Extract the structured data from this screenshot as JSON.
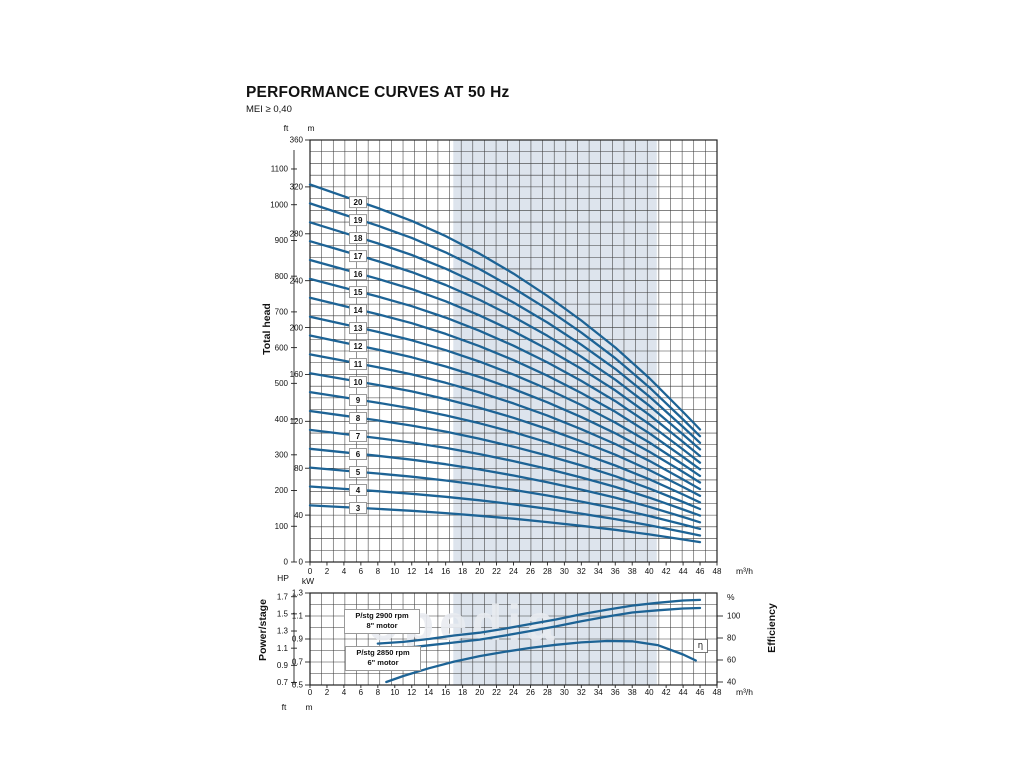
{
  "header": {
    "title": "PERFORMANCE CURVES AT 50 Hz",
    "mei": "MEI ≥ 0,40"
  },
  "watermark": "opedia",
  "colors": {
    "curve": "#1d6395",
    "band": "#dde4ed",
    "grid": "#3a3a3a",
    "text": "#111111",
    "box_border": "#8f8f8f",
    "watermark": "#e9ecf1"
  },
  "chart_data": [
    {
      "type": "line",
      "name": "total-head-curves",
      "title": "PERFORMANCE CURVES AT 50 Hz",
      "subtitle": "MEI ≥ 0,40",
      "ylabel": "Total head",
      "xlabel_unit": "m³/h",
      "axis_headers": {
        "ft": "ft",
        "m": "m"
      },
      "x_ticks": [
        0,
        2,
        4,
        6,
        8,
        10,
        12,
        14,
        16,
        18,
        20,
        22,
        24,
        26,
        28,
        30,
        32,
        34,
        36,
        38,
        40,
        42,
        44,
        46,
        48
      ],
      "ft_ticks": [
        1100,
        1000,
        900,
        800,
        700,
        600,
        500,
        400,
        300,
        200,
        100,
        0
      ],
      "m_ticks": [
        360,
        320,
        280,
        240,
        200,
        160,
        120,
        80,
        40,
        0
      ],
      "xlim": [
        0,
        48
      ],
      "ylim_m": [
        0,
        360
      ],
      "recommended_band_q": [
        16.9,
        40.9
      ],
      "stages": [
        3,
        4,
        5,
        6,
        7,
        8,
        9,
        10,
        11,
        12,
        13,
        14,
        15,
        16,
        17,
        18,
        19,
        20
      ],
      "per_stage_head": {
        "q": [
          0,
          4,
          8,
          12,
          16,
          20,
          24,
          28,
          32,
          36,
          40,
          44,
          46
        ],
        "h_m": [
          16.1,
          15.6,
          15.1,
          14.55,
          13.9,
          13.15,
          12.3,
          11.35,
          10.3,
          9.15,
          7.85,
          6.4,
          5.65
        ]
      },
      "curve_rule": "head curve for N stages = N × per-stage head"
    },
    {
      "type": "line",
      "name": "power-and-efficiency",
      "ylabel_left": "Power/stage",
      "ylabel_right": "Efficiency",
      "xlabel_unit": "m³/h",
      "axis_headers": {
        "hp": "HP",
        "kw": "kW",
        "pct": "%"
      },
      "footer_units": {
        "ft": "ft",
        "m": "m"
      },
      "x_ticks": [
        0,
        2,
        4,
        6,
        8,
        10,
        12,
        14,
        16,
        18,
        20,
        22,
        24,
        26,
        28,
        30,
        32,
        34,
        36,
        38,
        40,
        42,
        44,
        46,
        48
      ],
      "hp_ticks": [
        1.7,
        1.5,
        1.3,
        1.1,
        0.9,
        0.7
      ],
      "kw_ticks": [
        1.3,
        1.1,
        0.9,
        0.7,
        0.5
      ],
      "pct_ticks": [
        100,
        80,
        60,
        40
      ],
      "kw_lim": [
        0.5,
        1.3
      ],
      "pct_lim": [
        40,
        100
      ],
      "recommended_band_q": [
        16.9,
        40.9
      ],
      "series": [
        {
          "name": "P/stg 2900 rpm 8\" motor",
          "axis": "kw",
          "q": [
            8,
            11,
            14,
            17,
            20,
            23,
            26,
            29,
            32,
            35,
            38,
            41,
            44,
            46
          ],
          "kw": [
            0.86,
            0.875,
            0.9,
            0.93,
            0.955,
            0.99,
            1.03,
            1.07,
            1.115,
            1.155,
            1.19,
            1.215,
            1.235,
            1.24
          ]
        },
        {
          "name": "P/stg 2850 rpm 6\" motor",
          "axis": "kw",
          "q": [
            8,
            11,
            14,
            17,
            20,
            23,
            26,
            29,
            32,
            35,
            38,
            41,
            44,
            46
          ],
          "kw": [
            0.805,
            0.82,
            0.845,
            0.87,
            0.895,
            0.93,
            0.97,
            1.01,
            1.055,
            1.095,
            1.13,
            1.15,
            1.165,
            1.17
          ]
        },
        {
          "name": "Efficiency",
          "symbol": "η",
          "axis": "pct",
          "q": [
            9,
            11,
            14,
            17,
            20,
            23,
            26,
            29,
            32,
            35,
            38,
            41,
            44,
            45.5
          ],
          "pct": [
            40,
            45.5,
            52.5,
            58.5,
            63.5,
            67.5,
            71,
            73.8,
            76,
            77.3,
            77,
            73.5,
            65,
            59.5
          ]
        }
      ],
      "annotations": [
        {
          "line1": "P/stg 2900 rpm",
          "line2": "8\" motor"
        },
        {
          "line1": "P/stg 2850 rpm",
          "line2": "6\" motor"
        },
        {
          "symbol": "η"
        }
      ]
    }
  ]
}
